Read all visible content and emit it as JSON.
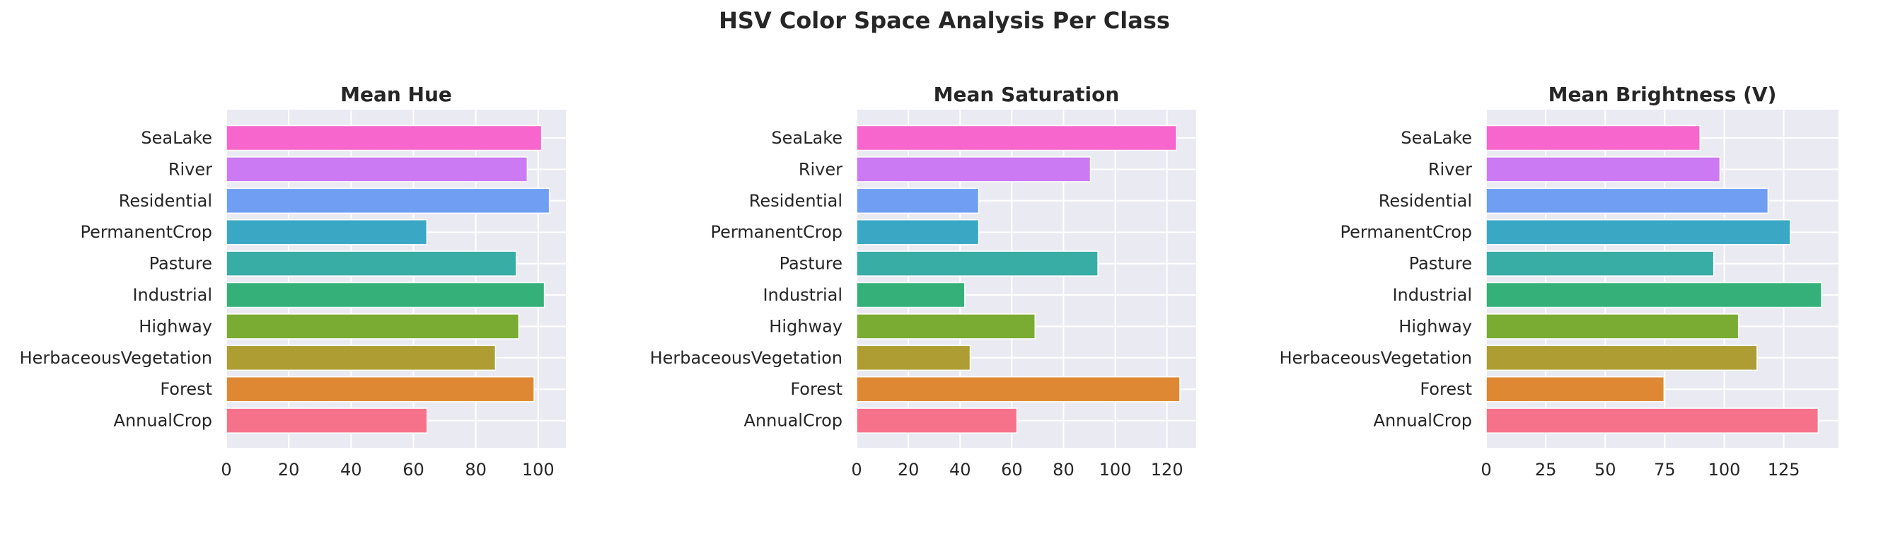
{
  "title": "HSV Color Space Analysis Per Class",
  "chart_data": [
    {
      "type": "bar",
      "orientation": "horizontal",
      "title": "Mean Hue",
      "categories": [
        "SeaLake",
        "River",
        "Residential",
        "PermanentCrop",
        "Pasture",
        "Industrial",
        "Highway",
        "HerbaceousVegetation",
        "Forest",
        "AnnualCrop"
      ],
      "values": [
        101.1,
        96.5,
        103.6,
        64.3,
        93.0,
        102.0,
        93.8,
        86.3,
        98.7,
        64.4
      ],
      "xticks": [
        0,
        20,
        40,
        60,
        80,
        100
      ],
      "xlim": [
        0,
        108.9
      ],
      "grid": true
    },
    {
      "type": "bar",
      "orientation": "horizontal",
      "title": "Mean Saturation",
      "categories": [
        "SeaLake",
        "River",
        "Residential",
        "PermanentCrop",
        "Pasture",
        "Industrial",
        "Highway",
        "HerbaceousVegetation",
        "Forest",
        "AnnualCrop"
      ],
      "values": [
        123.7,
        90.4,
        47.2,
        47.2,
        93.3,
        41.8,
        69.0,
        43.9,
        125.0,
        62.0
      ],
      "xticks": [
        0,
        20,
        40,
        60,
        80,
        100,
        120
      ],
      "xlim": [
        0,
        131.3
      ],
      "grid": true
    },
    {
      "type": "bar",
      "orientation": "horizontal",
      "title": "Mean Brightness (V)",
      "categories": [
        "SeaLake",
        "River",
        "Residential",
        "PermanentCrop",
        "Pasture",
        "Industrial",
        "Highway",
        "HerbaceousVegetation",
        "Forest",
        "AnnualCrop"
      ],
      "values": [
        89.8,
        98.2,
        118.4,
        127.8,
        95.6,
        140.9,
        106.0,
        113.8,
        74.7,
        139.5
      ],
      "xticks": [
        0,
        25,
        50,
        75,
        100,
        125
      ],
      "xlim": [
        0,
        148
      ],
      "grid": true
    }
  ],
  "colors": [
    "#f766cc",
    "#cb7af3",
    "#6f9ef3",
    "#3aa8c5",
    "#38ada5",
    "#35b078",
    "#7aab33",
    "#ae9d33",
    "#de8833",
    "#f6728a"
  ],
  "plot_background": "#eaeaf2"
}
